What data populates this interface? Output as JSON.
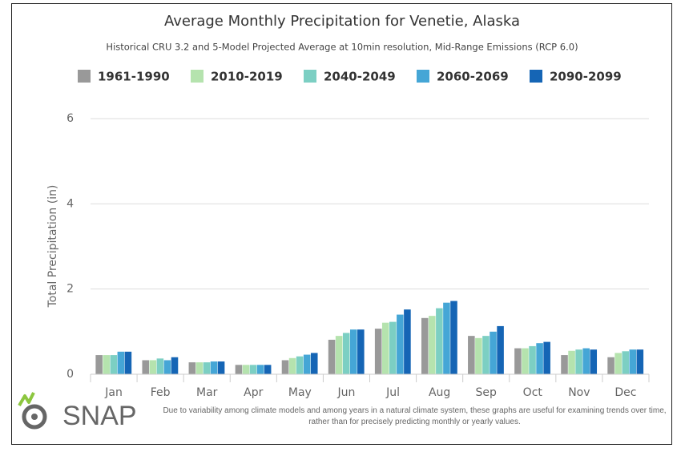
{
  "chart_data": {
    "type": "bar",
    "title": "Average Monthly Precipitation for Venetie, Alaska",
    "subtitle": "Historical CRU 3.2 and 5-Model Projected Average at 10min resolution, Mid-Range Emissions (RCP 6.0)",
    "y_label": "Total Precipitation (in)",
    "categories": [
      "Jan",
      "Feb",
      "Mar",
      "Apr",
      "May",
      "Jun",
      "Jul",
      "Aug",
      "Sep",
      "Oct",
      "Nov",
      "Dec"
    ],
    "series": [
      {
        "name": "1961-1990",
        "color": "#999999",
        "values": [
          0.45,
          0.33,
          0.28,
          0.22,
          0.33,
          0.81,
          1.07,
          1.32,
          0.9,
          0.61,
          0.45,
          0.4
        ]
      },
      {
        "name": "2010-2019",
        "color": "#b5e3ae",
        "values": [
          0.45,
          0.33,
          0.28,
          0.22,
          0.38,
          0.9,
          1.21,
          1.37,
          0.85,
          0.61,
          0.55,
          0.5
        ]
      },
      {
        "name": "2040-2049",
        "color": "#7ccfc3",
        "values": [
          0.45,
          0.37,
          0.28,
          0.22,
          0.42,
          0.97,
          1.23,
          1.55,
          0.9,
          0.66,
          0.58,
          0.54
        ]
      },
      {
        "name": "2060-2069",
        "color": "#45a6d6",
        "values": [
          0.53,
          0.33,
          0.3,
          0.22,
          0.46,
          1.05,
          1.4,
          1.68,
          1.0,
          0.73,
          0.61,
          0.58
        ]
      },
      {
        "name": "2090-2099",
        "color": "#1565b5",
        "values": [
          0.53,
          0.4,
          0.3,
          0.22,
          0.5,
          1.05,
          1.52,
          1.72,
          1.13,
          0.76,
          0.58,
          0.58
        ]
      }
    ],
    "ylim": [
      0,
      6
    ],
    "yticks": [
      0,
      2,
      4,
      6
    ],
    "grid": true
  },
  "footer": {
    "logo": "SNAP",
    "note": "Due to variability among climate models and among years in a natural climate system, these graphs are useful for examining trends over time, rather than for precisely predicting monthly or yearly values."
  }
}
